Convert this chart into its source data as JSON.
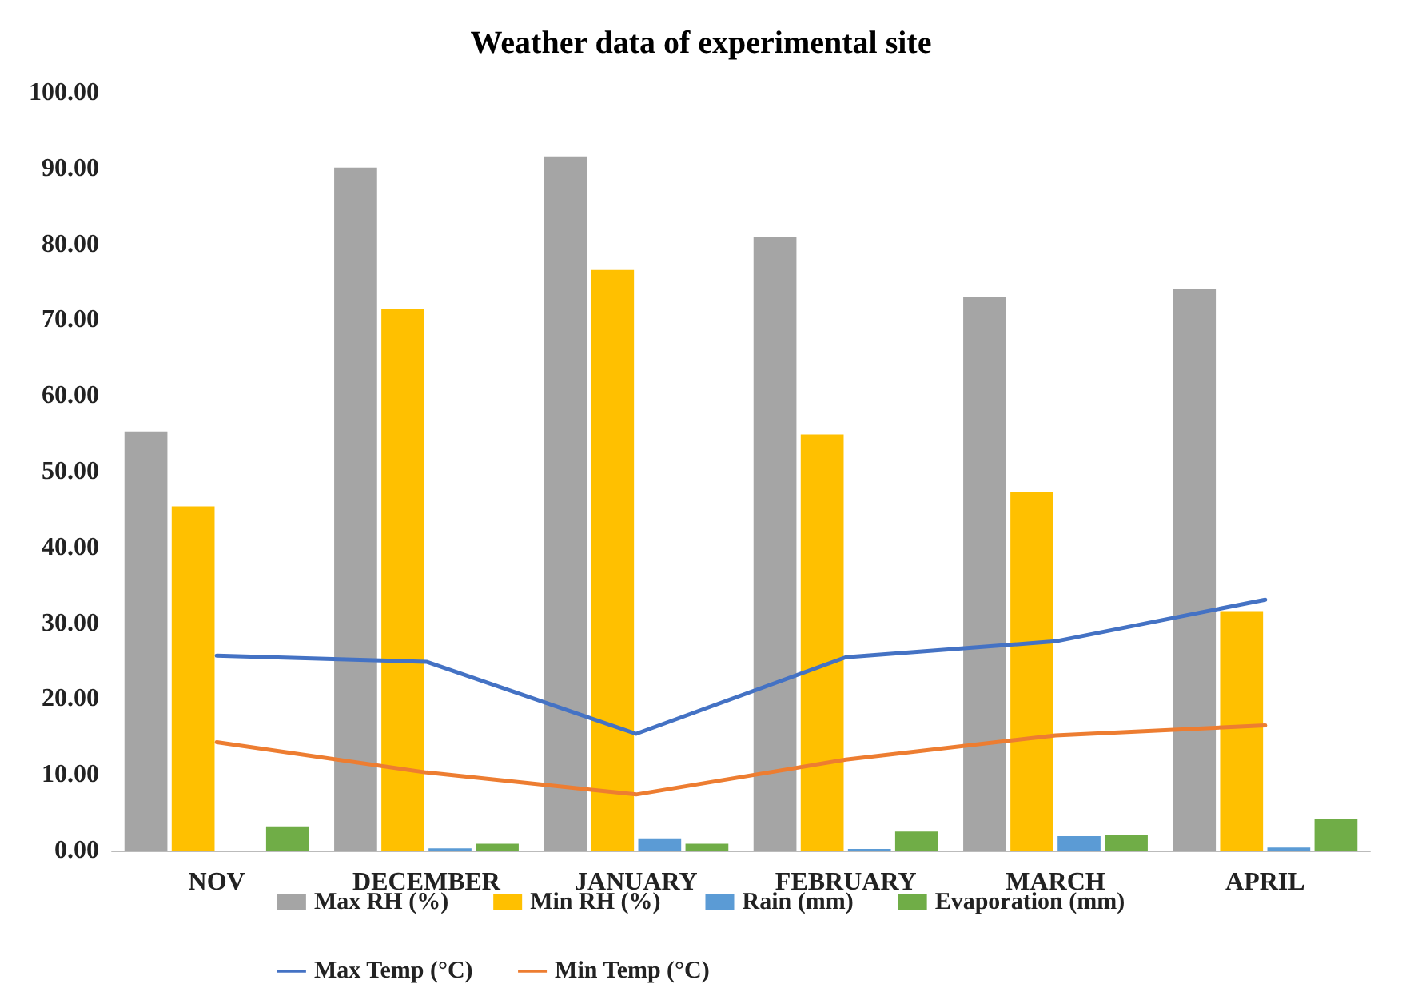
{
  "chart_data": {
    "type": "bar",
    "title": "Weather data of experimental site",
    "categories": [
      "NOV",
      "DECEMBER",
      "JANUARY",
      "FEBRUARY",
      "MARCH",
      "APRIL"
    ],
    "series": [
      {
        "name": "Max RH (%)",
        "color": "#a5a5a5",
        "values": [
          55.3,
          90.1,
          91.6,
          81.0,
          73.0,
          74.1
        ]
      },
      {
        "name": "Min RH (%)",
        "color": "#ffc000",
        "values": [
          45.4,
          71.5,
          76.6,
          54.9,
          47.3,
          31.6
        ]
      },
      {
        "name": "Rain (mm)",
        "color": "#5b9bd5",
        "values": [
          0,
          0.3,
          1.6,
          0.2,
          1.9,
          0.4
        ]
      },
      {
        "name": "Evaporation (mm)",
        "color": "#70ad47",
        "values": [
          3.2,
          0.9,
          0.9,
          2.5,
          2.1,
          4.2
        ]
      },
      {
        "name": "Max Temp (°C)",
        "type": "line",
        "color": "#4472c4",
        "values": [
          25.7,
          24.9,
          15.4,
          25.5,
          27.6,
          33.1
        ]
      },
      {
        "name": "Min Temp (°C)",
        "type": "line",
        "color": "#ed7d31",
        "values": [
          14.3,
          10.3,
          7.4,
          12.0,
          15.2,
          16.5
        ]
      }
    ],
    "ylim": [
      0,
      100
    ],
    "yticks": [
      {
        "value": 0,
        "label": "0.00"
      },
      {
        "value": 10,
        "label": "10.00"
      },
      {
        "value": 20,
        "label": "20.00"
      },
      {
        "value": 30,
        "label": "30.00"
      },
      {
        "value": 40,
        "label": "40.00"
      },
      {
        "value": 50,
        "label": "50.00"
      },
      {
        "value": 60,
        "label": "60.00"
      },
      {
        "value": 70,
        "label": "70.00"
      },
      {
        "value": 80,
        "label": "80.00"
      },
      {
        "value": 90,
        "label": "90.00"
      },
      {
        "value": 100,
        "label": "100.00"
      }
    ],
    "grid": false,
    "legend": "bottom",
    "marker": "none",
    "line_style": "solid"
  }
}
